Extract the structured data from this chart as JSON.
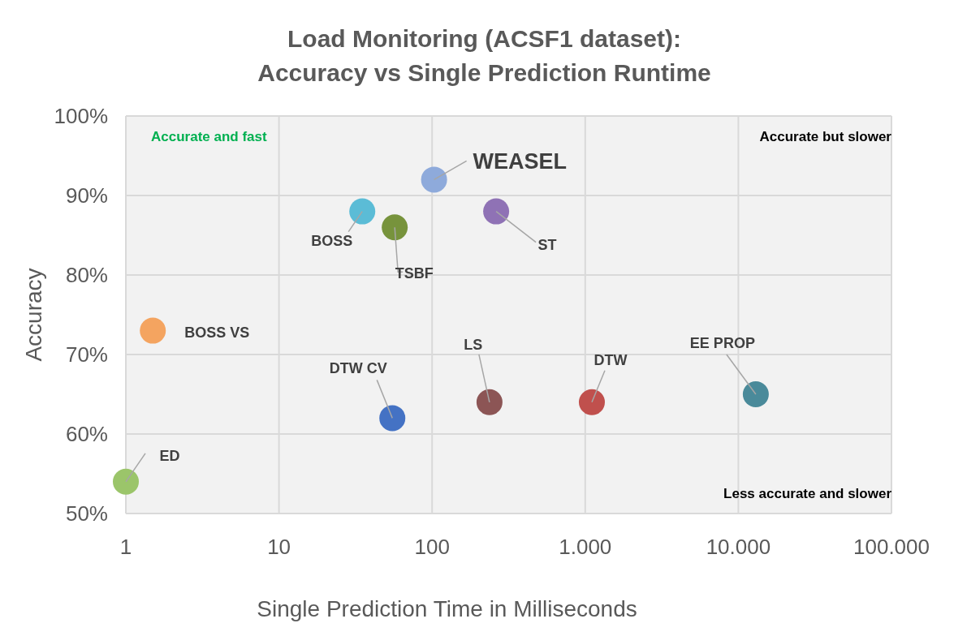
{
  "chart_data": {
    "type": "scatter",
    "title": "Load Monitoring (ACSF1 dataset):\nAccuracy vs Single Prediction Runtime",
    "xlabel": "Single Prediction Time in Milliseconds",
    "ylabel": "Accuracy",
    "log": "x",
    "grid": true,
    "marker": "circle",
    "xlim": [
      1,
      100000
    ],
    "xticks": [
      {
        "value": 1,
        "label": "1"
      },
      {
        "value": 10,
        "label": "10"
      },
      {
        "value": 100,
        "label": "100"
      },
      {
        "value": 1000,
        "label": "1.000"
      },
      {
        "value": 10000,
        "label": "10.000"
      },
      {
        "value": 100000,
        "label": "100.000"
      }
    ],
    "ylim": [
      50,
      100
    ],
    "yticks": [
      {
        "value": 50,
        "label": "50%"
      },
      {
        "value": 60,
        "label": "60%"
      },
      {
        "value": 70,
        "label": "70%"
      },
      {
        "value": 80,
        "label": "80%"
      },
      {
        "value": 90,
        "label": "90%"
      },
      {
        "value": 100,
        "label": "100%"
      }
    ],
    "annotations": [
      "Accurate and fast",
      "Accurate but slower",
      "Less accurate and slower"
    ],
    "series": [
      {
        "name": "WEASEL",
        "color": "#8eaadb",
        "x": [
          103
        ],
        "values": [
          92
        ]
      },
      {
        "name": "BOSS",
        "color": "#5bbcd6",
        "x": [
          35
        ],
        "values": [
          88
        ]
      },
      {
        "name": "TSBF",
        "color": "#77933c",
        "x": [
          57
        ],
        "values": [
          86
        ]
      },
      {
        "name": "ST",
        "color": "#8f72b5",
        "x": [
          262
        ],
        "values": [
          88
        ]
      },
      {
        "name": "BOSS VS",
        "color": "#f4a460",
        "x": [
          1.5
        ],
        "values": [
          73
        ]
      },
      {
        "name": "DTW CV",
        "color": "#4472c4",
        "x": [
          55
        ],
        "values": [
          62
        ]
      },
      {
        "name": "LS",
        "color": "#8c5555",
        "x": [
          237
        ],
        "values": [
          64
        ]
      },
      {
        "name": "DTW",
        "color": "#c0504d",
        "x": [
          1105
        ],
        "values": [
          64
        ]
      },
      {
        "name": "EE PROP",
        "color": "#4a8a9a",
        "x": [
          13000
        ],
        "values": [
          65
        ]
      },
      {
        "name": "ED",
        "color": "#9bc56a",
        "x": [
          1
        ],
        "values": [
          54
        ]
      }
    ]
  }
}
